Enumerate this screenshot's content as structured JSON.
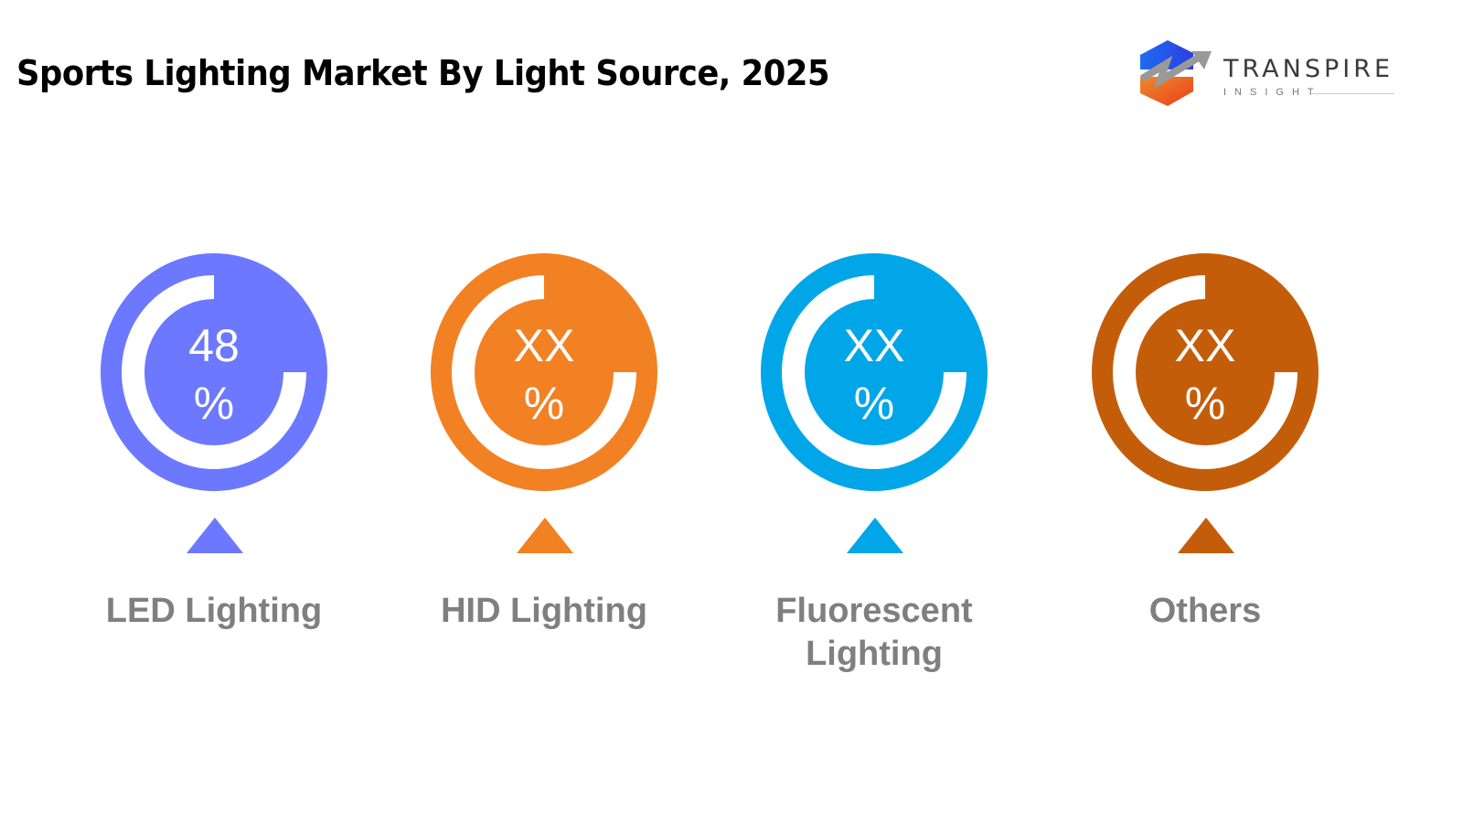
{
  "title": "Sports Lighting Market By Light Source, 2025",
  "logo": {
    "name": "TRANSPIRE",
    "sub": "INSIGHT"
  },
  "chart_data": {
    "type": "infographic-donut",
    "title": "Sports Lighting Market By Light Source, 2025",
    "categories": [
      "LED Lighting",
      "HID Lighting",
      "Fluorescent Lighting",
      "Others"
    ],
    "items": [
      {
        "label": "LED Lighting",
        "value": "48",
        "unit": "%",
        "color": "#6B78FF"
      },
      {
        "label": "HID Lighting",
        "value": "XX",
        "unit": "%",
        "color": "#F28123"
      },
      {
        "label": "Fluorescent Lighting",
        "value": "XX",
        "unit": "%",
        "color": "#00A6E8"
      },
      {
        "label": "Others",
        "value": "XX",
        "unit": "%",
        "color": "#C45D0A"
      }
    ]
  }
}
